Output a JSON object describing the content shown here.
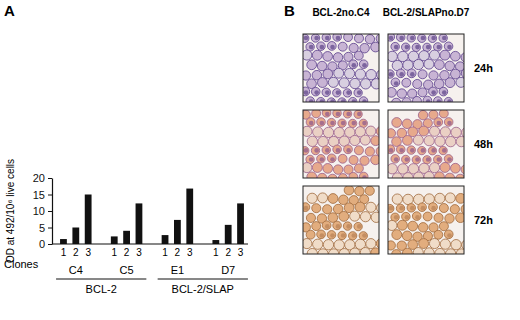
{
  "chart_data": {
    "type": "bar",
    "title": "A",
    "y_label": "OD at 492/10⁶ live cells",
    "x_label": "Clones",
    "categories": [
      "1",
      "2",
      "3",
      "1",
      "2",
      "3",
      "1",
      "2",
      "3",
      "1",
      "2",
      "3"
    ],
    "values": [
      1.5,
      5,
      15,
      2.3,
      4,
      12.3,
      2.7,
      7.3,
      16.8,
      1.2,
      5.8,
      12.3
    ],
    "clone_labels": [
      "C4",
      "C5",
      "E1",
      "D7"
    ],
    "group_labels": [
      "BCL-2",
      "BCL-2/SLAP"
    ],
    "color": "#111111",
    "ylim": [
      0,
      20
    ],
    "yticks": [
      0,
      5,
      10,
      15,
      20
    ],
    "grid": false
  },
  "panel_b": {
    "label": "B",
    "columns": [
      "BCL-2no.C4",
      "BCL-2/SLAPno.D7"
    ],
    "rows": [
      "24h",
      "48h",
      "72h"
    ]
  }
}
